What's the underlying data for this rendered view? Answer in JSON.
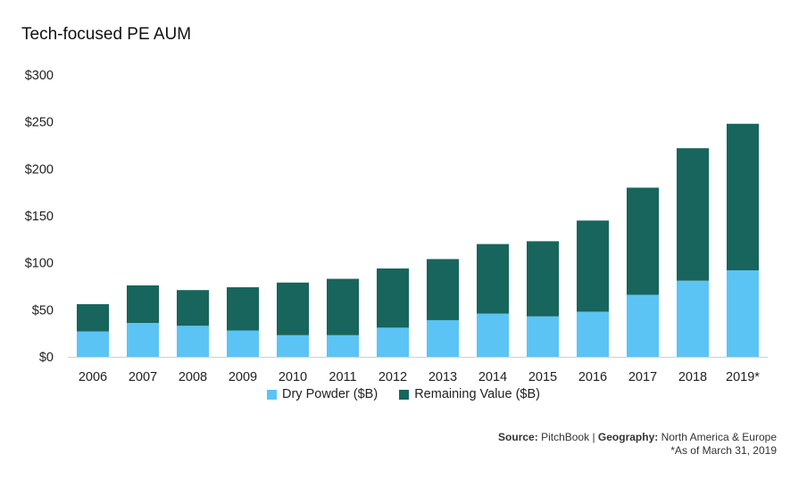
{
  "chart_data": {
    "type": "bar",
    "stacked": true,
    "title": "Tech-focused PE AUM",
    "categories": [
      "2006",
      "2007",
      "2008",
      "2009",
      "2010",
      "2011",
      "2012",
      "2013",
      "2014",
      "2015",
      "2016",
      "2017",
      "2018",
      "2019*"
    ],
    "series": [
      {
        "name": "Dry Powder ($B)",
        "color": "#5BC4F5",
        "values": [
          27,
          36,
          33,
          28,
          23,
          23,
          31,
          39,
          46,
          43,
          48,
          66,
          81,
          92
        ]
      },
      {
        "name": "Remaining Value ($B)",
        "color": "#17655C",
        "values": [
          29,
          40,
          38,
          46,
          56,
          60,
          63,
          65,
          74,
          80,
          97,
          114,
          141,
          156
        ]
      }
    ],
    "ylim": [
      0,
      300
    ],
    "yticks": [
      0,
      50,
      100,
      150,
      200,
      250,
      300
    ],
    "ytick_labels": [
      "$0",
      "$50",
      "$100",
      "$150",
      "$200",
      "$250",
      "$300"
    ],
    "xlabel": "",
    "ylabel": "",
    "grid": false,
    "legend_position": "bottom"
  },
  "footer": {
    "source_label": "Source:",
    "source_value": "PitchBook",
    "separator": "|",
    "geo_label": "Geography:",
    "geo_value": "North America & Europe",
    "note": "*As of March 31, 2019"
  }
}
